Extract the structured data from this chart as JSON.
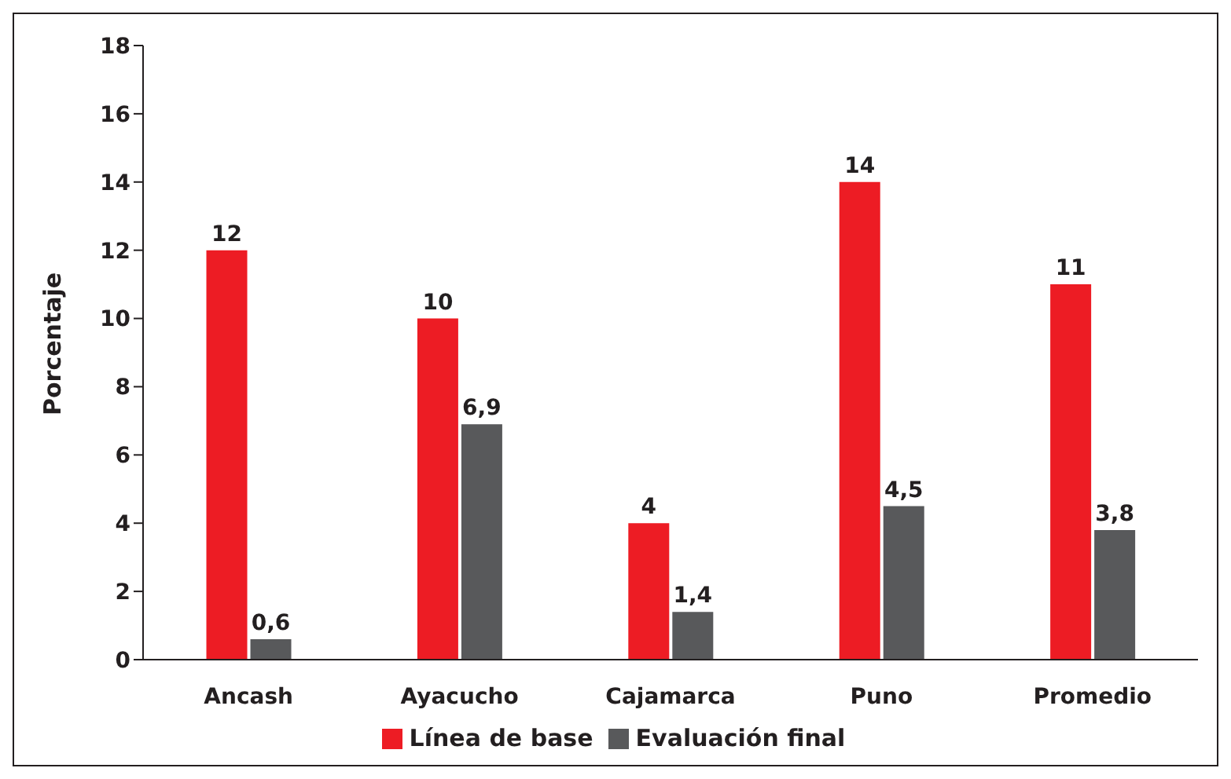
{
  "chart_data": {
    "type": "bar",
    "ylabel": "Porcentaje",
    "categories": [
      "Ancash",
      "Ayacucho",
      "Cajamarca",
      "Puno",
      "Promedio"
    ],
    "series": [
      {
        "name": "Línea de base",
        "color": "#ed1c24",
        "values": [
          12,
          10,
          4,
          14,
          11
        ],
        "value_labels": [
          "12",
          "10",
          "4",
          "14",
          "11"
        ]
      },
      {
        "name": "Evaluación final",
        "color": "#58595b",
        "values": [
          0.6,
          6.9,
          1.4,
          4.5,
          3.8
        ],
        "value_labels": [
          "0,6",
          "6,9",
          "1,4",
          "4,5",
          "3,8"
        ]
      }
    ],
    "ylim": [
      0,
      18
    ],
    "yticks": [
      0,
      2,
      4,
      6,
      8,
      10,
      12,
      14,
      16,
      18
    ],
    "grid": false,
    "legend": "bottom"
  }
}
